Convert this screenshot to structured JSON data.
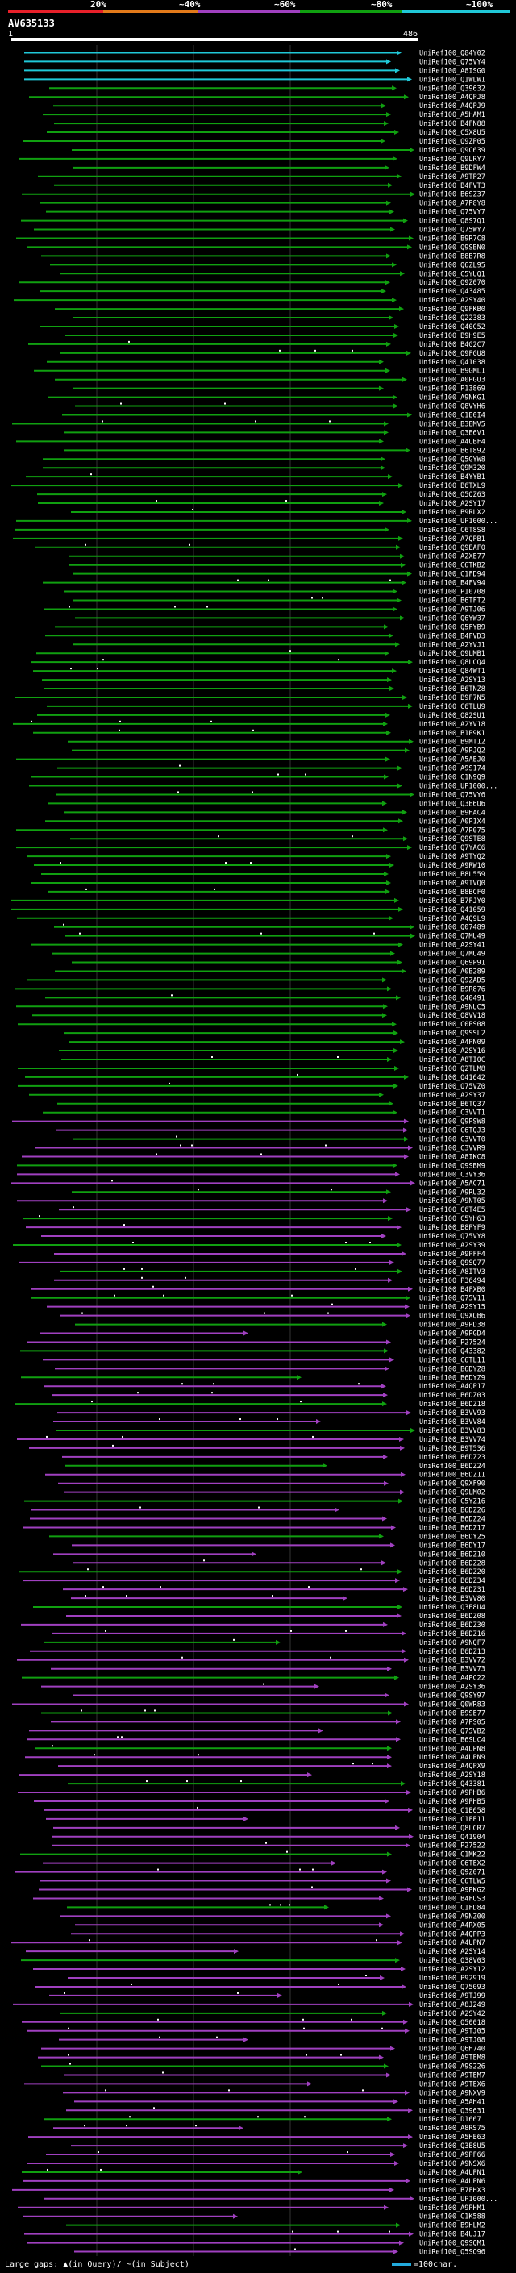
{
  "legend": {
    "labels": [
      "20%",
      "~40%",
      "~60%",
      "~80%",
      "~100%"
    ],
    "colors": [
      "#e8202a",
      "#e27a1a",
      "#a040c0",
      "#10a010",
      "#20c8d8"
    ]
  },
  "query": {
    "title": "AV635133",
    "start": "1",
    "end": "486"
  },
  "hits": [
    "UniRef100_Q84Y02",
    "UniRef100_Q75VY4",
    "UniRef100_A8ISG0",
    "UniRef100_Q1WLW1",
    "UniRef100_Q39632",
    "UniRef100_A4QPJ8",
    "UniRef100_A4QPJ9",
    "UniRef100_A5HAM1",
    "UniRef100_B4FN88",
    "UniRef100_C5X8U5",
    "UniRef100_Q9ZP05",
    "UniRef100_Q9C639",
    "UniRef100_Q9LRY7",
    "UniRef100_B9DFW4",
    "UniRef100_A9TP27",
    "UniRef100_B4FVT3",
    "UniRef100_B6SZ37",
    "UniRef100_A7P8Y8",
    "UniRef100_Q75VY7",
    "UniRef100_Q8S7Q1",
    "UniRef100_Q75WY7",
    "UniRef100_B9R7C8",
    "UniRef100_Q9SBN0",
    "UniRef100_B8B7R8",
    "UniRef100_Q6ZL95",
    "UniRef100_C5YUQ1",
    "UniRef100_Q9Z070",
    "UniRef100_Q43485",
    "UniRef100_A2SY40",
    "UniRef100_Q9FKB0",
    "UniRef100_Q22383",
    "UniRef100_Q40C52",
    "UniRef100_B9H9E5",
    "UniRef100_B4G2C7",
    "UniRef100_Q9FGU8",
    "UniRef100_Q41038",
    "UniRef100_B9GML1",
    "UniRef100_A0PGU3",
    "UniRef100_P13869",
    "UniRef100_A9NKG1",
    "UniRef100_Q8VYH6",
    "UniRef100_C1E0I4",
    "UniRef100_B3EMV5",
    "UniRef100_Q3E6V1",
    "UniRef100_A4UBF4",
    "UniRef100_B6T892",
    "UniRef100_Q5GYW8",
    "UniRef100_Q9M320",
    "UniRef100_B4YYB1",
    "UniRef100_B6TXL9",
    "UniRef100_Q5QZ63",
    "UniRef100_A2SY17",
    "UniRef100_B9RLX2",
    "UniRef100_UP1000...",
    "UniRef100_C6T8S8",
    "UniRef100_A7QPB1",
    "UniRef100_Q9EAF0",
    "UniRef100_A2XE77",
    "UniRef100_C6TKB2",
    "UniRef100_C1FD94",
    "UniRef100_B4FV94",
    "UniRef100_P10708",
    "UniRef100_B6TFT2",
    "UniRef100_A9TJ06",
    "UniRef100_Q6YW37",
    "UniRef100_Q5FYB9",
    "UniRef100_B4FVD3",
    "UniRef100_A2YVJ1",
    "UniRef100_Q9LMB1",
    "UniRef100_Q8LCQ4",
    "UniRef100_Q84WT1",
    "UniRef100_A2SY13",
    "UniRef100_B6TNZ8",
    "UniRef100_B9F7N5",
    "UniRef100_C6TLU9",
    "UniRef100_Q82SU1",
    "UniRef100_A2YV18",
    "UniRef100_B1P9K1",
    "UniRef100_B9MT12",
    "UniRef100_A9PJQ2",
    "UniRef100_A5AEJ0",
    "UniRef100_A9S174",
    "UniRef100_C1N9Q9",
    "UniRef100_UP1000...",
    "UniRef100_Q75VY6",
    "UniRef100_Q3E6U6",
    "UniRef100_B9HAC4",
    "UniRef100_A0P1X4",
    "UniRef100_A7P075",
    "UniRef100_Q9STE8",
    "UniRef100_Q7YAC6",
    "UniRef100_A9TYQ2",
    "UniRef100_A9RW10",
    "UniRef100_B8L559",
    "UniRef100_A9TVQ0",
    "UniRef100_B8BCF0",
    "UniRef100_B7FJY0",
    "UniRef100_Q41059",
    "UniRef100_A4Q9L9",
    "UniRef100_Q07489",
    "UniRef100_Q7MU49",
    "UniRef100_A2SY41",
    "UniRef100_Q7MU49",
    "UniRef100_Q69P91",
    "UniRef100_A0B289",
    "UniRef100_Q9ZAD5",
    "UniRef100_B9R876",
    "UniRef100_Q40491",
    "UniRef100_A9NUC5",
    "UniRef100_Q8VV18",
    "UniRef100_C0PS08",
    "UniRef100_Q9SSL2",
    "UniRef100_A4PN09",
    "UniRef100_A2SY16",
    "UniRef100_A8TI0C",
    "UniRef100_Q2TLM8",
    "UniRef100_Q41642",
    "UniRef100_Q75VZ0",
    "UniRef100_A2SY37",
    "UniRef100_B6TQ37",
    "UniRef100_C3VVT1",
    "UniRef100_Q9PSW8",
    "UniRef100_C6TQJ3",
    "UniRef100_C3VVT0",
    "UniRef100_C3VVR9",
    "UniRef100_A8IKC8",
    "UniRef100_Q9SBM9",
    "UniRef100_C3VY36",
    "UniRef100_A5AC71",
    "UniRef100_A9RU32",
    "UniRef100_A9NT05",
    "UniRef100_C6T4E5",
    "UniRef100_C5YH63",
    "UniRef100_B8PYF9",
    "UniRef100_Q75VY8",
    "UniRef100_A2SY39",
    "UniRef100_A9PFF4",
    "UniRef100_Q9SQ77",
    "UniRef100_A8ITV3",
    "UniRef100_P36494",
    "UniRef100_B4FXB0",
    "UniRef100_Q75V11",
    "UniRef100_A2SY15",
    "UniRef100_Q9XQB6",
    "UniRef100_A9PD38",
    "UniRef100_A9PGD4",
    "UniRef100_P27524",
    "UniRef100_Q43382",
    "UniRef100_C6TL11",
    "UniRef100_B6DYZ8",
    "UniRef100_B6DYZ9",
    "UniRef100_A4QP17",
    "UniRef100_B6DZ03",
    "UniRef100_B6DZ18",
    "UniRef100_B3VV93",
    "UniRef100_B3VV84",
    "UniRef100_B3VV83",
    "UniRef100_B3VV74",
    "UniRef100_B9T536",
    "UniRef100_B6DZ23",
    "UniRef100_B6DZ24",
    "UniRef100_B6DZ11",
    "UniRef100_Q9XF90",
    "UniRef100_Q9LM02",
    "UniRef100_C5YZ16",
    "UniRef100_B6DZ26",
    "UniRef100_B6DZ24",
    "UniRef100_B6DZ17",
    "UniRef100_B6DY25",
    "UniRef100_B6DY17",
    "UniRef100_B6DZ10",
    "UniRef100_B6DZ28",
    "UniRef100_B6DZ20",
    "UniRef100_B6DZ34",
    "UniRef100_B6DZ31",
    "UniRef100_B3VV80",
    "UniRef100_Q3E8U4",
    "UniRef100_B6DZ08",
    "UniRef100_B6DZ30",
    "UniRef100_B6DZ16",
    "UniRef100_A9NQF7",
    "UniRef100_B6DZ13",
    "UniRef100_B3VV72",
    "UniRef100_B3VV73",
    "UniRef100_A4PC22",
    "UniRef100_A2SY36",
    "UniRef100_Q9SY97",
    "UniRef100_Q0WR83",
    "UniRef100_B9SE77",
    "UniRef100_A7PS05",
    "UniRef100_Q75VB2",
    "UniRef100_B6SUC4",
    "UniRef100_A4UPN8",
    "UniRef100_A4UPN9",
    "UniRef100_A4QPX9",
    "UniRef100_A2SY18",
    "UniRef100_Q43381",
    "UniRef100_A9PHB6",
    "UniRef100_A9PHB5",
    "UniRef100_C1E658",
    "UniRef100_C1FE11",
    "UniRef100_Q8LCR7",
    "UniRef100_Q41904",
    "UniRef100_P27522",
    "UniRef100_C1MK22",
    "UniRef100_C6TEX2",
    "UniRef100_Q9Z071",
    "UniRef100_C6TLW5",
    "UniRef100_A9PKG2",
    "UniRef100_B4FUS3",
    "UniRef100_C1FD84",
    "UniRef100_A9NZ00",
    "UniRef100_A4RX05",
    "UniRef100_A4QPP3",
    "UniRef100_A4UPN7",
    "UniRef100_A2SY14",
    "UniRef100_Q38V03",
    "UniRef100_A2SY12",
    "UniRef100_P92919",
    "UniRef100_Q75093",
    "UniRef100_A9TJ99",
    "UniRef100_A8J249",
    "UniRef100_A2SY42",
    "UniRef100_Q50018",
    "UniRef100_A9TJ05",
    "UniRef100_A9TJ08",
    "UniRef100_Q6H740",
    "UniRef100_A9TEM8",
    "UniRef100_A9S226",
    "UniRef100_A9TEM7",
    "UniRef100_A9TEX6",
    "UniRef100_A9NXV9",
    "UniRef100_A5AH41",
    "UniRef100_Q39631",
    "UniRef100_D1667",
    "UniRef100_A8RS75",
    "UniRef100_A5HE63",
    "UniRef100_Q3E8U5",
    "UniRef100_A9PF66",
    "UniRef100_A9NSX6",
    "UniRef100_A4UPN1",
    "UniRef100_A4UPN6",
    "UniRef100_B7FHX3",
    "UniRef100_UP1000...",
    "UniRef100_A9PHM1",
    "UniRef100_C1K588",
    "UniRef100_B9HLM2",
    "UniRef100_B4UJ17",
    "UniRef100_Q9SQM1",
    "UniRef100_Q5SQ96"
  ],
  "footer": {
    "large_gaps_label": "Large gaps:",
    "gap_query_symbol": "▲",
    "gap_query_label": "(in Query)/",
    "gap_subject_symbol": "~",
    "gap_subject_label": "(in Subject)",
    "scale_label": "=100char."
  }
}
